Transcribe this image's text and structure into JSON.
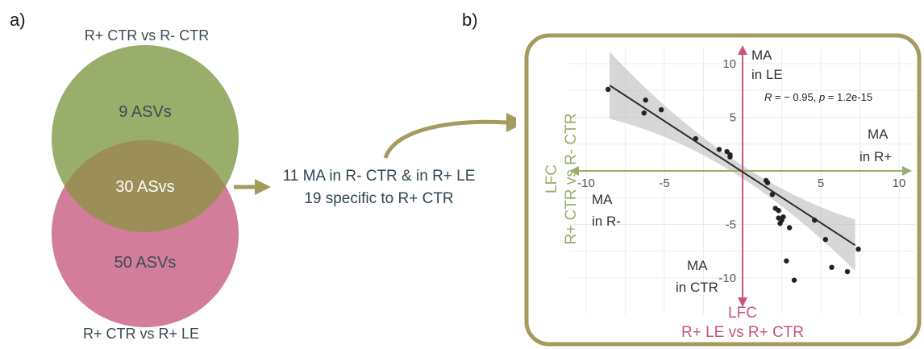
{
  "panel_a": {
    "label": "a)",
    "top_title": "R+ CTR vs R- CTR",
    "bottom_title": "R+ CTR vs R+ LE",
    "top_only": "9 ASVs",
    "overlap": "30 ASvs",
    "bottom_only": "50 ASVs",
    "colors": {
      "green": "#9aae6b",
      "pink": "#d27d99",
      "overlap": "#9c8e57"
    }
  },
  "middle": {
    "line1": "11 MA in R- CTR & in R+ LE",
    "line2": "19 specific to R+ CTR",
    "arrow_color": "#a59b5e"
  },
  "panel_b": {
    "label": "b)",
    "frame_color": "#a59b5e",
    "quadrant_labels": {
      "top_line1": "MA",
      "top_line2": "in LE",
      "right_line1": "MA",
      "right_line2": "in R+",
      "left_line1": "MA",
      "left_line2": "in R-",
      "bottom_line1": "MA",
      "bottom_line2": "in CTR"
    },
    "y_label_line1": "LFC",
    "y_label_line2": "R+ CTR vs R- CTR",
    "x_label_line1": "LFC",
    "x_label_line2": "R+ LE vs R+ CTR",
    "stat_R": "R",
    "stat_rest": " = − 0.95, ",
    "stat_p": "p",
    "stat_tail": " = 1.2e-15"
  },
  "chart_data": {
    "type": "scatter",
    "x_axis_color": "#9aae6b",
    "y_axis_color": "#c7557f",
    "xlim": [
      -10.5,
      10.5
    ],
    "ylim": [
      -11.5,
      11
    ],
    "x_ticks": [
      -10,
      -5,
      5,
      10
    ],
    "y_ticks": [
      10,
      5,
      -5,
      -10
    ],
    "x_tick_labels": [
      "-10",
      "-5",
      "5",
      "10"
    ],
    "y_tick_labels": [
      "10",
      "5",
      "-5",
      "-10"
    ],
    "grid": true,
    "fit": {
      "slope": -0.95,
      "intercept": -0.1,
      "x_range": [
        -8.5,
        7.2
      ]
    },
    "points": [
      [
        -8.6,
        7.6
      ],
      [
        -6.2,
        6.6
      ],
      [
        -6.3,
        5.4
      ],
      [
        -5.2,
        5.7
      ],
      [
        -3.0,
        3.0
      ],
      [
        -1.5,
        2.0
      ],
      [
        -1.0,
        1.8
      ],
      [
        -0.8,
        1.5
      ],
      [
        -0.8,
        1.3
      ],
      [
        1.5,
        -0.9
      ],
      [
        1.6,
        -1.1
      ],
      [
        1.9,
        -2.2
      ],
      [
        2.1,
        -3.5
      ],
      [
        2.3,
        -3.7
      ],
      [
        2.6,
        -4.3
      ],
      [
        2.3,
        -4.4
      ],
      [
        2.5,
        -4.6
      ],
      [
        2.4,
        -4.9
      ],
      [
        3.0,
        -5.3
      ],
      [
        2.8,
        -8.4
      ],
      [
        3.3,
        -10.2
      ],
      [
        4.6,
        -4.6
      ],
      [
        5.3,
        -6.4
      ],
      [
        5.7,
        -9.0
      ],
      [
        6.7,
        -9.4
      ],
      [
        7.4,
        -7.3
      ]
    ]
  }
}
